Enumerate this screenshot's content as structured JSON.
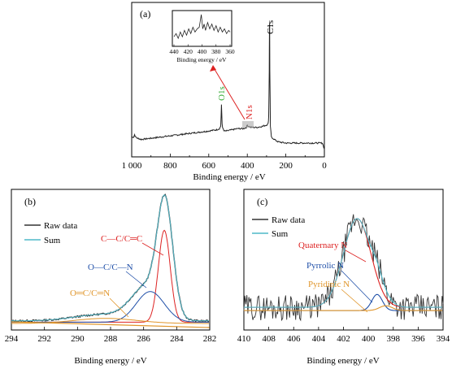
{
  "chart_data": [
    {
      "panel": "(a)",
      "type": "line",
      "xlabel": "Binding energy / eV",
      "ylabel": "",
      "xlim": [
        1000,
        0
      ],
      "xticks": [
        "1 000",
        "800",
        "600",
        "400",
        "200",
        "0"
      ],
      "peak_labels": [
        {
          "text": "C1s",
          "color": "#000000"
        },
        {
          "text": "O1s",
          "color": "#33aa33"
        },
        {
          "text": "N1s",
          "color": "#dd2222"
        }
      ],
      "series": [
        {
          "x": [
            1000,
            990,
            985,
            980,
            970,
            950,
            900,
            850,
            800,
            750,
            700,
            650,
            600,
            560,
            545,
            538,
            534,
            531,
            528,
            522,
            510,
            480,
            450,
            420,
            405,
            400,
            395,
            380,
            350,
            320,
            300,
            292,
            289,
            286,
            285,
            284,
            283,
            280,
            275,
            260,
            240,
            200,
            150,
            100,
            50,
            10,
            0
          ],
          "y": [
            0.05,
            0.05,
            0.07,
            0.05,
            0.04,
            0.03,
            0.04,
            0.05,
            0.06,
            0.07,
            0.08,
            0.09,
            0.1,
            0.11,
            0.12,
            0.14,
            0.32,
            0.16,
            0.13,
            0.1,
            0.1,
            0.11,
            0.12,
            0.12,
            0.13,
            0.15,
            0.14,
            0.13,
            0.13,
            0.14,
            0.15,
            0.16,
            0.22,
            0.6,
            0.97,
            1.0,
            0.6,
            0.14,
            0.05,
            0.03,
            0.01,
            0.0,
            0.0,
            0.0,
            0.0,
            0.0,
            -0.05
          ]
        }
      ]
    },
    {
      "panel": "inset",
      "type": "line",
      "xlabel": "Binding energy / eV",
      "xlim": [
        440,
        360
      ],
      "xticks": [
        "440",
        "420",
        "400",
        "380",
        "360"
      ],
      "series": [
        {
          "x": [
            440,
            437,
            434,
            431,
            428,
            425,
            422,
            419,
            416,
            413,
            410,
            407,
            404,
            401,
            399,
            397,
            395,
            392,
            389,
            386,
            383,
            380,
            377,
            374,
            371,
            368,
            365,
            362,
            360
          ],
          "y": [
            0.3,
            0.4,
            0.25,
            0.45,
            0.3,
            0.5,
            0.35,
            0.55,
            0.4,
            0.6,
            0.45,
            0.55,
            0.6,
            1.0,
            0.55,
            0.7,
            0.5,
            0.75,
            0.55,
            0.7,
            0.5,
            0.65,
            0.45,
            0.6,
            0.45,
            0.55,
            0.4,
            0.5,
            0.45
          ]
        }
      ]
    },
    {
      "panel": "(b)",
      "type": "line",
      "xlabel": "Binding energy / eV",
      "xlim": [
        294,
        282
      ],
      "xticks": [
        "294",
        "292",
        "290",
        "288",
        "286",
        "284",
        "282"
      ],
      "legend": [
        "Raw data",
        "Sum"
      ],
      "annotations": [
        {
          "text": "C—C/C═C",
          "color": "#dd2222"
        },
        {
          "text": "O—C/C—N",
          "color": "#1f4fa8"
        },
        {
          "text": "O═C/C═N",
          "color": "#e0952a"
        }
      ],
      "series": [
        {
          "name": "Raw data",
          "color": "#333333",
          "components": [
            {
              "center": 284.7,
              "height": 0.85,
              "width": 0.55
            },
            {
              "center": 285.8,
              "height": 0.26,
              "width": 1.1
            },
            {
              "center": 288.5,
              "height": 0.05,
              "width": 2.0
            }
          ],
          "baseline": 0.02
        },
        {
          "name": "Sum",
          "color": "#4fb8c8",
          "components": [
            {
              "center": 284.7,
              "height": 0.85,
              "width": 0.55
            },
            {
              "center": 285.8,
              "height": 0.26,
              "width": 1.1
            },
            {
              "center": 288.5,
              "height": 0.05,
              "width": 2.0
            }
          ],
          "baseline": 0.02
        },
        {
          "name": "C—C/C═C",
          "color": "#dd2222",
          "components": [
            {
              "center": 284.75,
              "height": 0.72,
              "width": 0.42
            }
          ],
          "baseline": 0.01
        },
        {
          "name": "O—C/C—N",
          "color": "#1f4fa8",
          "components": [
            {
              "center": 285.6,
              "height": 0.24,
              "width": 1.0
            }
          ],
          "baseline": 0.01
        },
        {
          "name": "O═C/C═N",
          "color": "#e0952a",
          "components": [
            {
              "center": 288.3,
              "height": 0.04,
              "width": 2.2
            }
          ],
          "baseline": 0.0
        }
      ]
    },
    {
      "panel": "(c)",
      "type": "line",
      "xlabel": "Binding energy / eV",
      "xlim": [
        410,
        394
      ],
      "xticks": [
        "410",
        "408",
        "406",
        "404",
        "402",
        "400",
        "398",
        "396",
        "394"
      ],
      "legend": [
        "Raw data",
        "Sum"
      ],
      "annotations": [
        {
          "text": "Quaternary N",
          "color": "#dd2222"
        },
        {
          "text": "Pyrrolic N",
          "color": "#1f4fa8"
        },
        {
          "text": "Pyridinic N",
          "color": "#e0952a"
        }
      ],
      "series": [
        {
          "name": "Sum",
          "color": "#4fb8c8",
          "components": [
            {
              "center": 400.9,
              "height": 0.55,
              "width": 1.3
            },
            {
              "center": 399.3,
              "height": 0.08,
              "width": 0.5
            },
            {
              "center": 398.6,
              "height": 0.03,
              "width": 0.6
            }
          ],
          "baseline": 0.1
        },
        {
          "name": "Quaternary N",
          "color": "#dd2222",
          "components": [
            {
              "center": 400.9,
              "height": 0.55,
              "width": 1.3
            }
          ],
          "baseline": 0.1
        },
        {
          "name": "Pyrrolic N",
          "color": "#1f4fa8",
          "components": [
            {
              "center": 399.3,
              "height": 0.1,
              "width": 0.5
            }
          ],
          "baseline": 0.08
        },
        {
          "name": "Pyridinic N",
          "color": "#e0952a",
          "components": [
            {
              "center": 398.6,
              "height": 0.03,
              "width": 0.6
            }
          ],
          "baseline": 0.08
        }
      ]
    }
  ],
  "labels": {
    "a": "(a)",
    "b": "(b)",
    "c": "(c)",
    "xlabel": "Binding energy / eV",
    "inset_xlabel": "Binding energy / eV"
  }
}
